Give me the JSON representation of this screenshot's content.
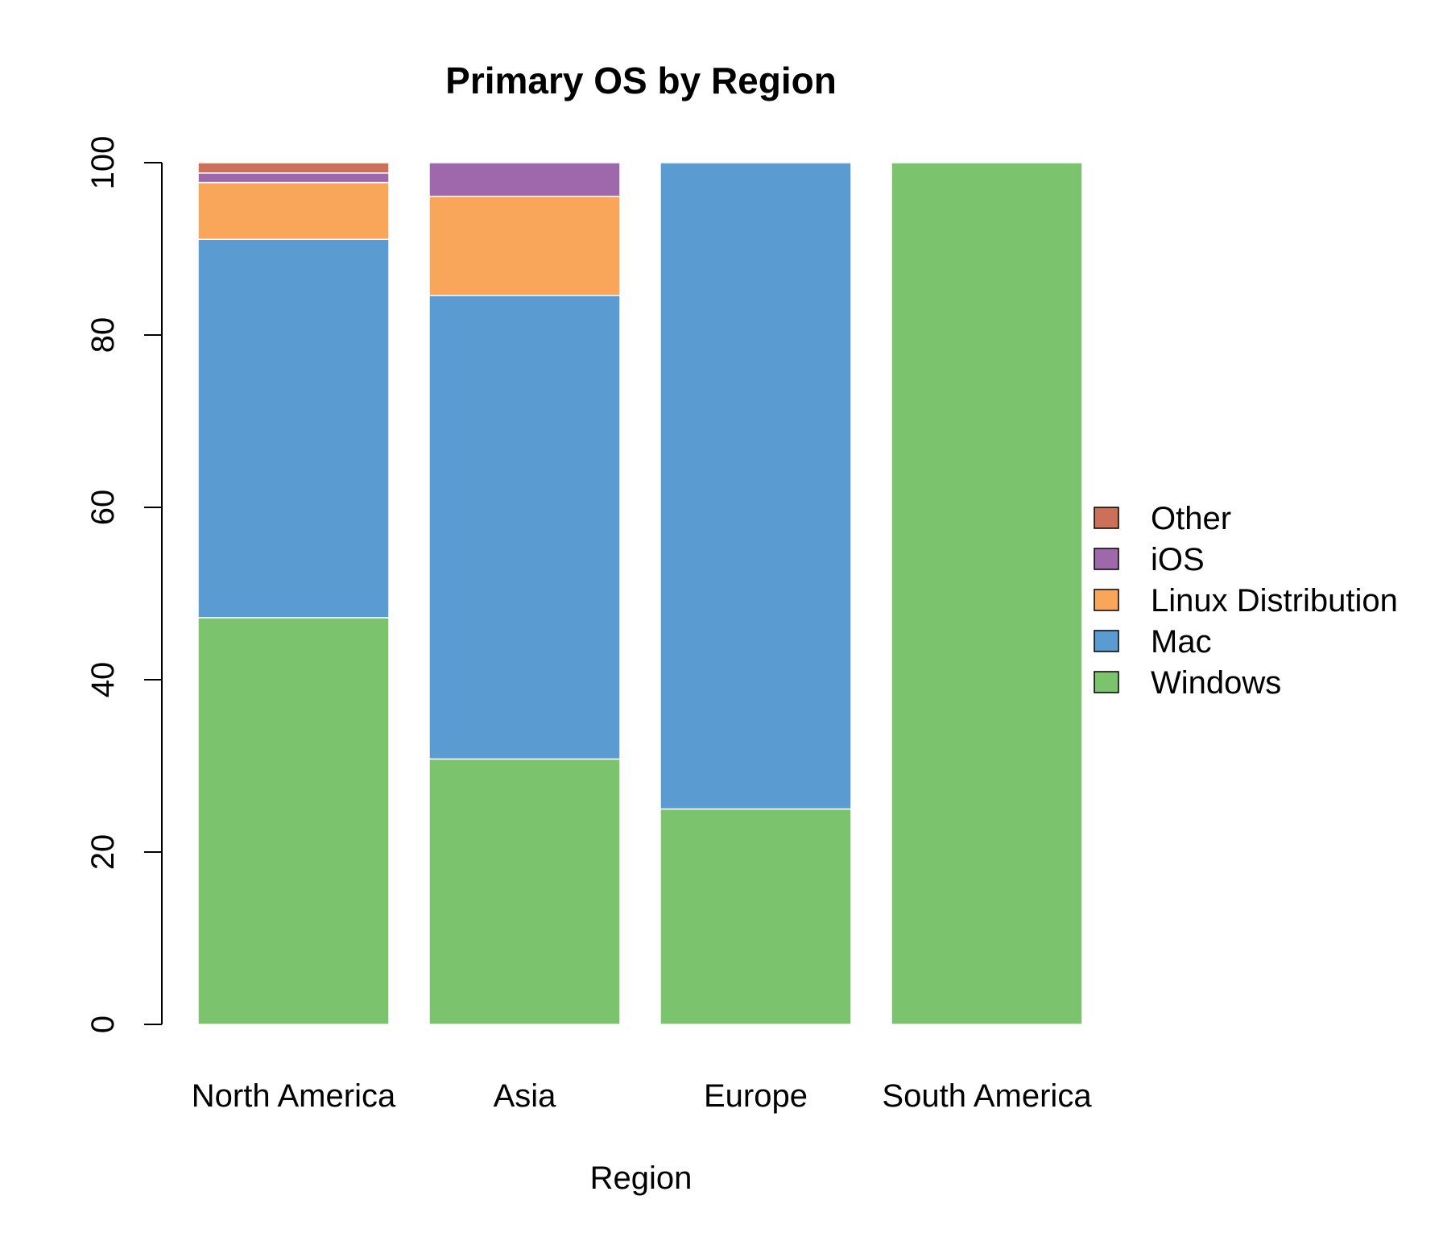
{
  "chart_data": {
    "type": "bar",
    "stacked": true,
    "title": "Primary OS by Region",
    "xlabel": "Region",
    "ylabel": "",
    "ylim": [
      0,
      100
    ],
    "yticks": [
      0,
      20,
      40,
      60,
      80,
      100
    ],
    "categories": [
      "North America",
      "Asia",
      "Europe",
      "South America"
    ],
    "series": [
      {
        "name": "Windows",
        "color": "#7bc36c",
        "values": [
          47.2,
          30.8,
          25.0,
          100.0
        ]
      },
      {
        "name": "Mac",
        "color": "#5a9bd2",
        "values": [
          43.9,
          53.8,
          75.0,
          0
        ]
      },
      {
        "name": "Linux Distribution",
        "color": "#f9a65a",
        "values": [
          6.6,
          11.5,
          0,
          0
        ]
      },
      {
        "name": "iOS",
        "color": "#9e68aa",
        "values": [
          1.1,
          3.9,
          0,
          0
        ]
      },
      {
        "name": "Other",
        "color": "#cd705a",
        "values": [
          1.2,
          0,
          0,
          0
        ]
      }
    ],
    "grid": false,
    "legend_position": "right",
    "legend_order": [
      "Other",
      "iOS",
      "Linux Distribution",
      "Mac",
      "Windows"
    ]
  }
}
